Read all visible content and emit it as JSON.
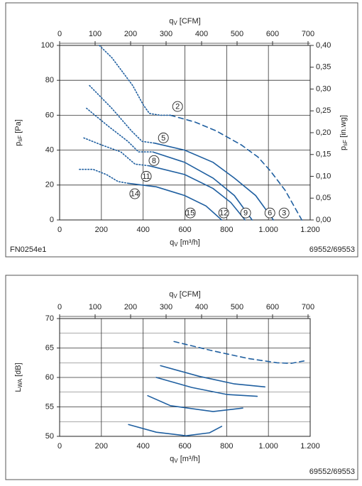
{
  "chart_data": [
    {
      "type": "line",
      "x_label": {
        "text": "q",
        "sub": "V",
        "unit": " [m³/h]"
      },
      "x2_label": {
        "text": "q",
        "sub": "V",
        "unit": " [CFM]"
      },
      "y_label": {
        "text": "p",
        "sub": "sF",
        "unit": " [Pa]"
      },
      "y2_label": {
        "text": "p",
        "sub": "sF",
        "unit": " [in.wg]"
      },
      "xlim": [
        0,
        1200
      ],
      "xticks": [
        0,
        200,
        400,
        600,
        800,
        {
          "value": 1000,
          "label": "1.000"
        },
        {
          "value": 1200,
          "label": "1.200"
        }
      ],
      "x2lim": [
        0,
        706
      ],
      "x2ticks": [
        0,
        100,
        200,
        300,
        400,
        500,
        600,
        700
      ],
      "ylim": [
        0,
        100
      ],
      "yticks": [
        0,
        20,
        40,
        60,
        80,
        100
      ],
      "y2lim": [
        0,
        0.4
      ],
      "y2ticks": [
        {
          "value": 0,
          "label": "0,00"
        },
        {
          "value": 0.05,
          "label": "0,05"
        },
        {
          "value": 0.1,
          "label": "0,10"
        },
        {
          "value": 0.15,
          "label": "0,15"
        },
        {
          "value": 0.2,
          "label": "0,20"
        },
        {
          "value": 0.25,
          "label": "0,25"
        },
        {
          "value": 0.3,
          "label": "0,30"
        },
        {
          "value": 0.35,
          "label": "0,35"
        },
        {
          "value": 0.4,
          "label": "0,40"
        }
      ],
      "grid": true,
      "color": "#1f5fa0",
      "series": [
        {
          "style": "dotted",
          "x": [
            190,
            250,
            300,
            350,
            400,
            430,
            480,
            530
          ],
          "values": [
            100,
            93,
            85,
            77,
            66,
            61,
            60,
            60
          ]
        },
        {
          "style": "dashed",
          "x": [
            530,
            650,
            750,
            870,
            950,
            1010,
            1080,
            1160
          ],
          "values": [
            60,
            56,
            51,
            43,
            36,
            28,
            17,
            0
          ]
        },
        {
          "style": "dotted",
          "x": [
            143,
            250,
            344,
            395,
            456
          ],
          "values": [
            77,
            64,
            51,
            45,
            44
          ]
        },
        {
          "style": "solid",
          "x": [
            456,
            599,
            735,
            837,
            939,
            1024
          ],
          "values": [
            44,
            40,
            33,
            24,
            14,
            0
          ]
        },
        {
          "style": "dotted",
          "x": [
            129,
            230,
            327,
            378,
            446
          ],
          "values": [
            64,
            54,
            45,
            39,
            39
          ]
        },
        {
          "style": "solid",
          "x": [
            446,
            599,
            735,
            837,
            922
          ],
          "values": [
            39,
            33,
            24,
            14,
            0
          ]
        },
        {
          "style": "dotted",
          "x": [
            116,
            200,
            293,
            361,
            429
          ],
          "values": [
            47,
            43,
            39,
            32,
            31
          ]
        },
        {
          "style": "solid",
          "x": [
            429,
            599,
            735,
            820,
            888
          ],
          "values": [
            31,
            26,
            18,
            10,
            0
          ]
        },
        {
          "style": "dotted",
          "x": [
            95,
            160,
            224,
            280,
            327
          ],
          "values": [
            29,
            29,
            26,
            22,
            21
          ]
        },
        {
          "style": "solid",
          "x": [
            327,
            463,
            599,
            701,
            776
          ],
          "values": [
            21,
            19,
            14,
            8,
            0
          ]
        }
      ],
      "annotations": [
        {
          "text": "2",
          "x": 565,
          "y": 65
        },
        {
          "text": "5",
          "x": 497,
          "y": 47
        },
        {
          "text": "8",
          "x": 452,
          "y": 34
        },
        {
          "text": "11",
          "x": 415,
          "y": 25
        },
        {
          "text": "14",
          "x": 360,
          "y": 15
        },
        {
          "text": "15",
          "x": 626,
          "y": 4
        },
        {
          "text": "12",
          "x": 786,
          "y": 4
        },
        {
          "text": "9",
          "x": 891,
          "y": 4
        },
        {
          "text": "6",
          "x": 1007,
          "y": 4
        },
        {
          "text": "3",
          "x": 1075,
          "y": 4
        }
      ],
      "footer_left": "FN0254e1",
      "footer_right": "69552/69553"
    },
    {
      "type": "line",
      "x_label": {
        "text": "q",
        "sub": "V",
        "unit": " [m³/h]"
      },
      "x2_label": {
        "text": "q",
        "sub": "V",
        "unit": " [CFM]"
      },
      "y_label": {
        "text": "L",
        "sub": "WA",
        "unit": " [dB]"
      },
      "xlim": [
        0,
        1200
      ],
      "xticks": [
        0,
        200,
        400,
        600,
        800,
        {
          "value": 1000,
          "label": "1.000"
        },
        {
          "value": 1200,
          "label": "1.200"
        }
      ],
      "x2lim": [
        0,
        706
      ],
      "x2ticks": [
        0,
        100,
        200,
        300,
        400,
        500,
        600,
        700
      ],
      "ylim": [
        50,
        70
      ],
      "yticks": [
        50,
        55,
        60,
        65,
        70
      ],
      "minor_yticks": [
        52.5,
        57.5,
        62.5,
        67.5
      ],
      "grid": true,
      "color": "#1f5fa0",
      "series": [
        {
          "style": "dashed",
          "x": [
            548,
            735,
            905,
            1041,
            1109,
            1170
          ],
          "values": [
            66.1,
            64.5,
            63.2,
            62.5,
            62.4,
            62.8
          ]
        },
        {
          "style": "solid",
          "x": [
            483,
            667,
            837,
            983
          ],
          "values": [
            62,
            60.2,
            58.9,
            58.4
          ]
        },
        {
          "style": "solid",
          "x": [
            463,
            633,
            803,
            946
          ],
          "values": [
            60,
            58.3,
            57.1,
            56.8
          ]
        },
        {
          "style": "solid",
          "x": [
            422,
            531,
            735,
            877
          ],
          "values": [
            56.9,
            55.2,
            54.2,
            54.8
          ]
        },
        {
          "style": "solid",
          "x": [
            330,
            463,
            605,
            718,
            776
          ],
          "values": [
            52,
            50.7,
            50.1,
            50.6,
            51.7
          ]
        }
      ],
      "footer_right": "69552/69553"
    }
  ]
}
